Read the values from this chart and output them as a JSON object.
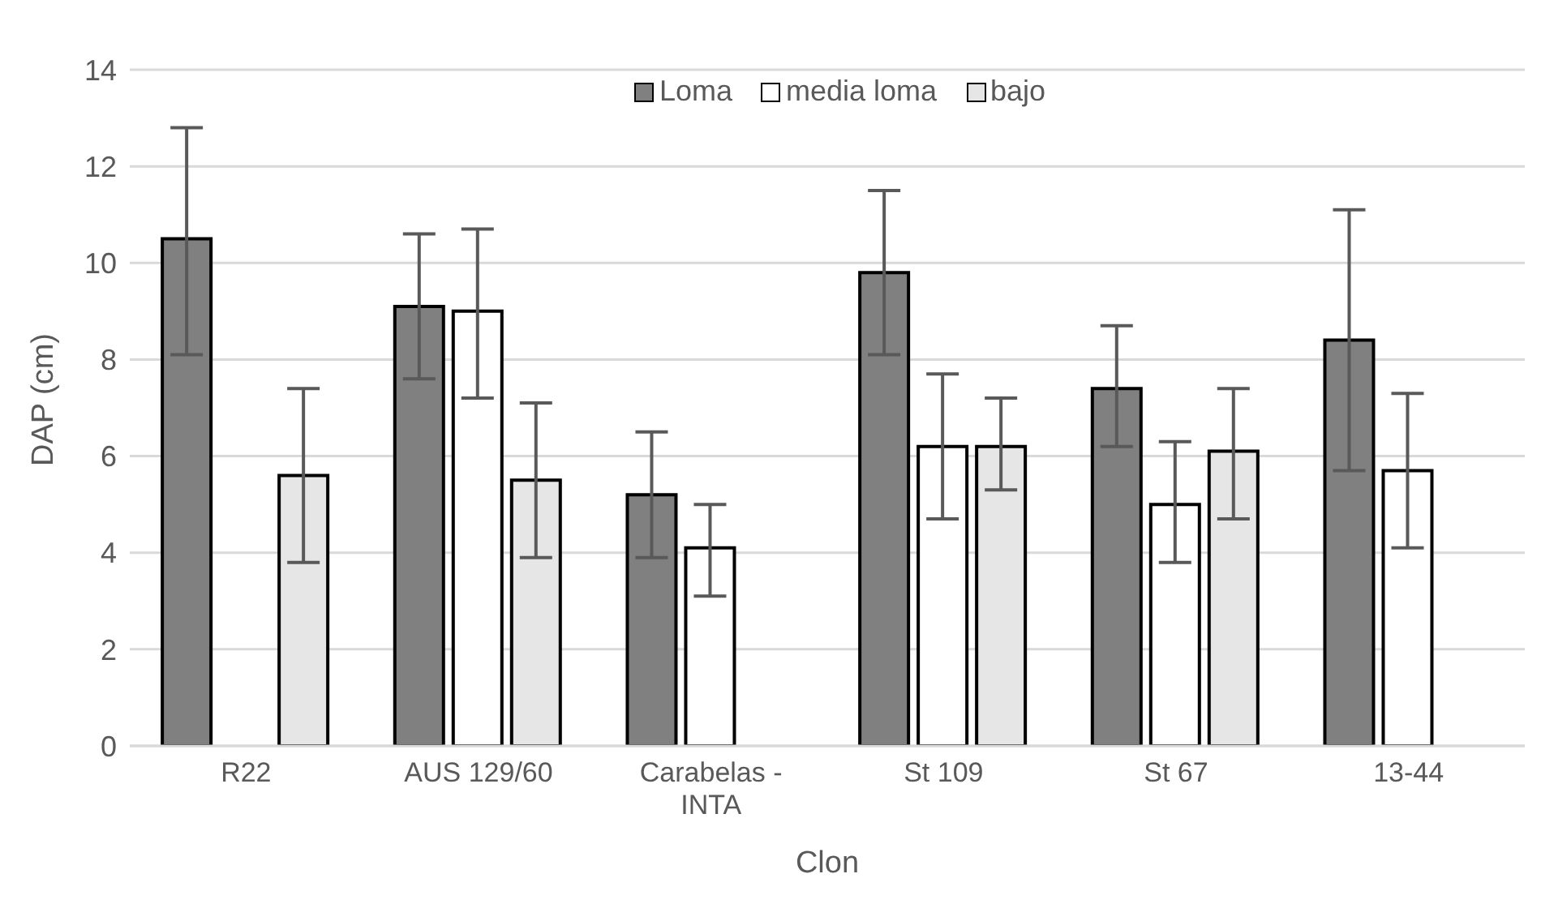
{
  "chart_data": {
    "type": "bar",
    "xlabel": "Clon",
    "ylabel": "DAP (cm)",
    "categories": [
      "R22",
      "AUS 129/60",
      "Carabelas - INTA",
      "St 109",
      "St 67",
      "13-44"
    ],
    "series": [
      {
        "name": "Loma",
        "color": "#808080",
        "values": [
          10.5,
          9.1,
          5.2,
          9.8,
          7.4,
          8.4
        ],
        "errors": [
          [
            8.1,
            12.8
          ],
          [
            7.6,
            10.6
          ],
          [
            3.9,
            6.5
          ],
          [
            8.1,
            11.5
          ],
          [
            6.2,
            8.7
          ],
          [
            5.7,
            11.1
          ]
        ]
      },
      {
        "name": "media loma",
        "color": "#ffffff",
        "values": [
          null,
          9.0,
          4.1,
          6.2,
          5.0,
          5.7
        ],
        "errors": [
          null,
          [
            7.2,
            10.7
          ],
          [
            3.1,
            5.0
          ],
          [
            4.7,
            7.7
          ],
          [
            3.8,
            6.3
          ],
          [
            4.1,
            7.3
          ]
        ]
      },
      {
        "name": "bajo",
        "color": "#e6e6e6",
        "values": [
          5.6,
          5.5,
          null,
          6.2,
          6.1,
          null
        ],
        "errors": [
          [
            3.8,
            7.4
          ],
          [
            3.9,
            7.1
          ],
          null,
          [
            5.3,
            7.2
          ],
          [
            4.7,
            7.4
          ],
          null
        ]
      }
    ],
    "ylim": [
      0,
      14
    ],
    "yticks": [
      0,
      2,
      4,
      6,
      8,
      10,
      12,
      14
    ],
    "grid": "y",
    "legend": "top"
  }
}
